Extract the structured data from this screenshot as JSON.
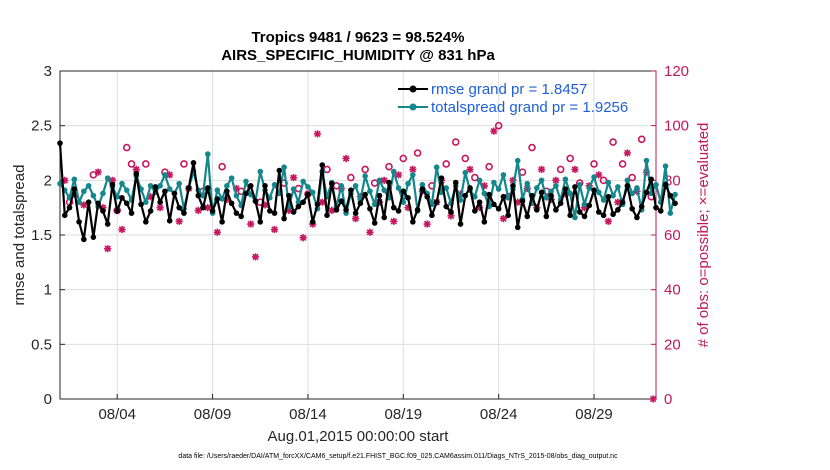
{
  "chart_data": {
    "type": "line",
    "title": "Tropics 9481 / 9623 = 98.524%",
    "subtitle": "AIRS_SPECIFIC_HUMIDITY @ 831 hPa",
    "ylabel": "rmse and totalspread",
    "y2label": "# of obs: o=possible; ×=evaluated",
    "xlabel": "Aug.01,2015 00:00:00 start",
    "footnote": "data file: /Users/raeder/DAI/ATM_forcXX/CAM6_setup/f.e21.FHIST_BGC.f09_025.CAM6assim.011/Diags_NTrS_2015-08/obs_diag_output.nc",
    "xlim": [
      0.5,
      31.75
    ],
    "ylim": [
      0,
      3
    ],
    "y2lim": [
      0,
      120
    ],
    "x_ticks": [
      3.5,
      8.5,
      13.5,
      18.5,
      23.5,
      28.5
    ],
    "x_tick_labels": [
      "08/04",
      "08/09",
      "08/14",
      "08/19",
      "08/24",
      "08/29"
    ],
    "y_ticks": [
      0,
      0.5,
      1,
      1.5,
      2,
      2.5,
      3
    ],
    "y_tick_labels": [
      "0",
      "0.5",
      "1",
      "1.5",
      "2",
      "2.5",
      "3"
    ],
    "y2_ticks": [
      0,
      20,
      40,
      60,
      80,
      100,
      120
    ],
    "y2_tick_labels": [
      "0",
      "20",
      "40",
      "60",
      "80",
      "100",
      "120"
    ],
    "colors": {
      "rmse": "#000000",
      "spread": "#13878c",
      "obs": "#c7175e",
      "legend_text": "#1f5fd6",
      "right_axis": "#c2185b"
    },
    "x_start": 0.5,
    "x_step": 0.25,
    "series": [
      {
        "name": "rmse grand pr = 1.8457",
        "values": [
          2.34,
          1.68,
          1.75,
          1.92,
          1.62,
          1.46,
          1.8,
          1.48,
          1.79,
          1.72,
          1.6,
          1.96,
          1.72,
          1.84,
          1.79,
          1.7,
          2.06,
          1.78,
          1.62,
          1.72,
          1.94,
          1.8,
          1.9,
          1.63,
          1.88,
          1.75,
          1.7,
          1.93,
          2.16,
          1.86,
          1.75,
          1.93,
          1.72,
          1.83,
          1.62,
          1.9,
          1.79,
          1.7,
          1.67,
          1.88,
          1.95,
          1.81,
          1.62,
          1.95,
          1.72,
          1.7,
          2.09,
          1.65,
          1.86,
          1.71,
          1.76,
          1.8,
          1.87,
          1.62,
          1.78,
          2.14,
          1.68,
          1.97,
          1.73,
          1.81,
          1.73,
          1.91,
          1.7,
          1.79,
          1.87,
          1.74,
          1.61,
          1.86,
          1.66,
          1.98,
          1.75,
          1.72,
          1.9,
          1.84,
          1.62,
          1.73,
          1.92,
          1.85,
          1.68,
          1.8,
          2.02,
          1.76,
          1.71,
          1.98,
          1.6,
          1.86,
          1.93,
          1.72,
          1.8,
          1.62,
          1.87,
          1.78,
          1.74,
          1.85,
          1.68,
          1.95,
          1.57,
          1.81,
          1.67,
          1.86,
          1.73,
          1.89,
          1.67,
          1.86,
          1.73,
          1.79,
          1.92,
          1.68,
          1.94,
          1.71,
          1.67,
          1.77,
          1.91,
          1.71,
          1.68,
          1.85,
          1.69,
          1.73,
          1.8,
          1.95,
          1.74,
          1.66,
          1.76,
          1.89,
          2.01,
          1.75,
          1.72,
          1.96,
          1.86,
          1.79
        ]
      },
      {
        "name": "totalspread grand pr = 1.9256",
        "values": [
          1.97,
          1.91,
          1.84,
          2.01,
          1.8,
          1.9,
          1.95,
          1.86,
          1.76,
          1.88,
          2.02,
          1.94,
          1.85,
          1.97,
          1.91,
          1.82,
          2.04,
          1.92,
          1.8,
          1.95,
          1.89,
          1.95,
          2.05,
          1.92,
          1.88,
          1.97,
          1.74,
          1.93,
          2.08,
          1.91,
          1.86,
          2.24,
          1.7,
          1.91,
          1.83,
          1.95,
          2.02,
          1.86,
          1.77,
          1.99,
          1.87,
          1.81,
          2.08,
          1.91,
          1.84,
          1.96,
          1.88,
          2.12,
          1.76,
          1.92,
          1.8,
          1.99,
          1.94,
          1.89,
          1.74,
          2.08,
          1.85,
          1.98,
          1.76,
          1.95,
          1.7,
          1.88,
          1.95,
          1.82,
          2.04,
          1.9,
          1.78,
          2.0,
          1.91,
          1.84,
          2.08,
          1.93,
          1.8,
          1.97,
          2.05,
          1.72,
          1.96,
          1.88,
          1.78,
          2.12,
          1.89,
          1.93,
          1.79,
          1.95,
          1.82,
          2.07,
          1.91,
          1.85,
          2.0,
          1.88,
          1.76,
          1.98,
          1.92,
          2.05,
          1.84,
          1.92,
          2.18,
          1.83,
          1.97,
          1.79,
          1.93,
          2.0,
          1.84,
          1.9,
          1.95,
          1.82,
          2.01,
          1.88,
          1.66,
          1.96,
          1.78,
          1.93,
          2.03,
          1.89,
          1.82,
          1.98,
          1.86,
          1.94,
          1.78,
          2.0,
          1.88,
          1.93,
          1.73,
          2.18,
          1.88,
          1.96,
          1.8,
          2.13,
          1.7,
          1.87
        ]
      }
    ],
    "obs_possible": [
      {
        "x": 1.0,
        "y": 72
      },
      {
        "x": 2.25,
        "y": 82
      },
      {
        "x": 3.5,
        "y": 69
      },
      {
        "x": 4.0,
        "y": 92
      },
      {
        "x": 4.25,
        "y": 86
      },
      {
        "x": 5.0,
        "y": 86
      },
      {
        "x": 6.0,
        "y": 83
      },
      {
        "x": 7.0,
        "y": 86
      },
      {
        "x": 8.0,
        "y": 76
      },
      {
        "x": 9.0,
        "y": 85
      },
      {
        "x": 10.0,
        "y": 76
      },
      {
        "x": 11.0,
        "y": 72
      },
      {
        "x": 12.25,
        "y": 79
      },
      {
        "x": 13.0,
        "y": 77
      },
      {
        "x": 13.5,
        "y": 75
      },
      {
        "x": 14.5,
        "y": 84
      },
      {
        "x": 15.0,
        "y": 78
      },
      {
        "x": 15.75,
        "y": 81
      },
      {
        "x": 16.5,
        "y": 84
      },
      {
        "x": 17.0,
        "y": 79
      },
      {
        "x": 17.75,
        "y": 85
      },
      {
        "x": 18.5,
        "y": 88
      },
      {
        "x": 19.25,
        "y": 90
      },
      {
        "x": 20.0,
        "y": 78
      },
      {
        "x": 20.75,
        "y": 86
      },
      {
        "x": 21.25,
        "y": 94
      },
      {
        "x": 21.75,
        "y": 88
      },
      {
        "x": 22.25,
        "y": 81
      },
      {
        "x": 23.0,
        "y": 85
      },
      {
        "x": 23.5,
        "y": 100
      },
      {
        "x": 24.0,
        "y": 74
      },
      {
        "x": 24.75,
        "y": 83
      },
      {
        "x": 25.25,
        "y": 92
      },
      {
        "x": 26.0,
        "y": 76
      },
      {
        "x": 26.75,
        "y": 84
      },
      {
        "x": 27.25,
        "y": 88
      },
      {
        "x": 27.75,
        "y": 79
      },
      {
        "x": 28.5,
        "y": 86
      },
      {
        "x": 29.0,
        "y": 80
      },
      {
        "x": 29.5,
        "y": 94
      },
      {
        "x": 30.0,
        "y": 86
      },
      {
        "x": 30.5,
        "y": 81
      },
      {
        "x": 31.0,
        "y": 95
      },
      {
        "x": 31.5,
        "y": 74
      }
    ],
    "obs_evaluated": [
      {
        "x": 0.75,
        "y": 80
      },
      {
        "x": 1.25,
        "y": 75
      },
      {
        "x": 1.75,
        "y": 71
      },
      {
        "x": 2.5,
        "y": 83
      },
      {
        "x": 2.75,
        "y": 70
      },
      {
        "x": 3.0,
        "y": 55
      },
      {
        "x": 3.25,
        "y": 80
      },
      {
        "x": 3.75,
        "y": 62
      },
      {
        "x": 4.5,
        "y": 84
      },
      {
        "x": 5.25,
        "y": 74
      },
      {
        "x": 5.75,
        "y": 70
      },
      {
        "x": 6.25,
        "y": 82
      },
      {
        "x": 6.75,
        "y": 65
      },
      {
        "x": 7.25,
        "y": 77
      },
      {
        "x": 7.75,
        "y": 69
      },
      {
        "x": 8.25,
        "y": 70
      },
      {
        "x": 8.75,
        "y": 61
      },
      {
        "x": 9.25,
        "y": 73
      },
      {
        "x": 9.75,
        "y": 77
      },
      {
        "x": 10.5,
        "y": 64
      },
      {
        "x": 10.75,
        "y": 52
      },
      {
        "x": 11.25,
        "y": 71
      },
      {
        "x": 11.75,
        "y": 62
      },
      {
        "x": 12.5,
        "y": 69
      },
      {
        "x": 12.75,
        "y": 81
      },
      {
        "x": 13.25,
        "y": 59
      },
      {
        "x": 13.75,
        "y": 64
      },
      {
        "x": 14.0,
        "y": 97
      },
      {
        "x": 14.25,
        "y": 72
      },
      {
        "x": 14.75,
        "y": 69
      },
      {
        "x": 15.25,
        "y": 77
      },
      {
        "x": 15.5,
        "y": 88
      },
      {
        "x": 16.0,
        "y": 66
      },
      {
        "x": 16.25,
        "y": 74
      },
      {
        "x": 16.75,
        "y": 61
      },
      {
        "x": 17.25,
        "y": 72
      },
      {
        "x": 17.5,
        "y": 80
      },
      {
        "x": 18.0,
        "y": 65
      },
      {
        "x": 18.25,
        "y": 82
      },
      {
        "x": 18.75,
        "y": 70
      },
      {
        "x": 19.0,
        "y": 84
      },
      {
        "x": 19.5,
        "y": 76
      },
      {
        "x": 19.75,
        "y": 64
      },
      {
        "x": 20.25,
        "y": 72
      },
      {
        "x": 20.5,
        "y": 80
      },
      {
        "x": 21.0,
        "y": 67
      },
      {
        "x": 21.5,
        "y": 75
      },
      {
        "x": 22.0,
        "y": 84
      },
      {
        "x": 22.5,
        "y": 70
      },
      {
        "x": 22.75,
        "y": 78
      },
      {
        "x": 23.25,
        "y": 98
      },
      {
        "x": 23.75,
        "y": 66
      },
      {
        "x": 24.25,
        "y": 80
      },
      {
        "x": 24.5,
        "y": 72
      },
      {
        "x": 25.0,
        "y": 77
      },
      {
        "x": 25.5,
        "y": 70
      },
      {
        "x": 25.75,
        "y": 84
      },
      {
        "x": 26.25,
        "y": 73
      },
      {
        "x": 26.5,
        "y": 80
      },
      {
        "x": 27.0,
        "y": 75
      },
      {
        "x": 27.5,
        "y": 84
      },
      {
        "x": 28.0,
        "y": 70
      },
      {
        "x": 28.25,
        "y": 78
      },
      {
        "x": 28.75,
        "y": 82
      },
      {
        "x": 29.25,
        "y": 65
      },
      {
        "x": 29.75,
        "y": 72
      },
      {
        "x": 30.25,
        "y": 90
      },
      {
        "x": 30.75,
        "y": 76
      },
      {
        "x": 31.25,
        "y": 83
      },
      {
        "x": 31.6,
        "y": 0
      }
    ]
  }
}
